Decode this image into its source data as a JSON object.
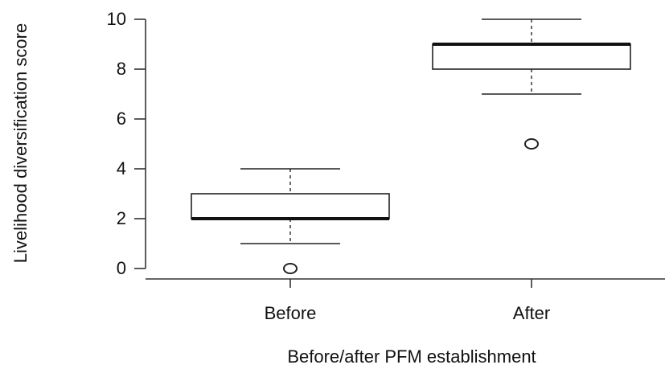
{
  "chart_data": {
    "type": "boxplot",
    "title": "",
    "xlabel": "Before/after PFM establishment",
    "ylabel": "Livelihood diversification score",
    "ylim": [
      0,
      10
    ],
    "yticks": [
      0,
      2,
      4,
      6,
      8,
      10
    ],
    "grid": false,
    "legend": "none",
    "categories": [
      "Before",
      "After"
    ],
    "series": [
      {
        "category": "Before",
        "min": 1,
        "q1": 2,
        "median": 2,
        "q3": 3,
        "max": 4,
        "outliers": [
          0
        ]
      },
      {
        "category": "After",
        "min": 7,
        "q1": 8,
        "median": 9,
        "q3": 9,
        "max": 10,
        "outliers": [
          5
        ]
      }
    ],
    "colors": {
      "box_fill": "#ffffff",
      "line": "#222222",
      "median": "#111111",
      "whisker": "#444444"
    }
  }
}
